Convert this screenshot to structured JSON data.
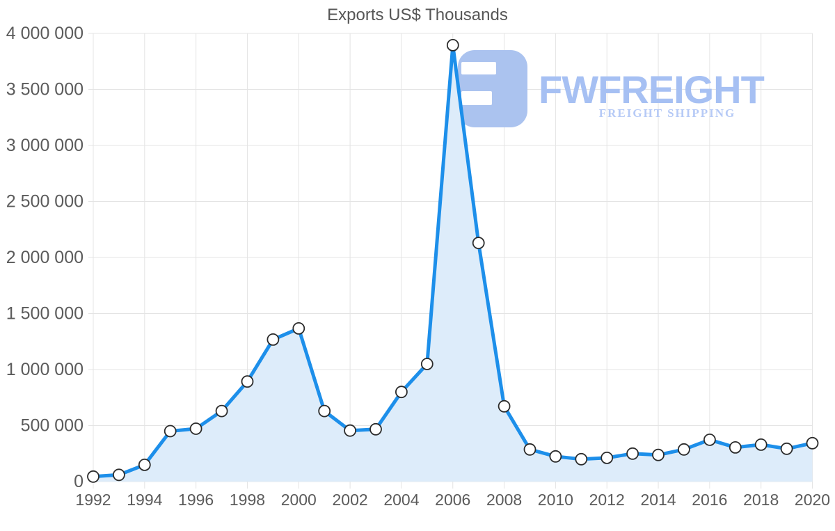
{
  "chart_data": {
    "type": "area",
    "title": "Exports US$ Thousands",
    "series": [
      {
        "name": "Exports US$ Thousands",
        "x": [
          1992,
          1993,
          1994,
          1995,
          1996,
          1997,
          1998,
          1999,
          2000,
          2001,
          2002,
          2003,
          2004,
          2005,
          2006,
          2007,
          2008,
          2009,
          2010,
          2011,
          2012,
          2013,
          2014,
          2015,
          2016,
          2017,
          2018,
          2019,
          2020
        ],
        "values": [
          45000,
          60000,
          150000,
          450000,
          472000,
          630000,
          893000,
          1268000,
          1367000,
          630000,
          455000,
          467000,
          800000,
          1050000,
          3895000,
          2130000,
          672000,
          287000,
          225000,
          200000,
          212000,
          250000,
          238000,
          287000,
          373000,
          305000,
          330000,
          293000,
          343000
        ]
      }
    ],
    "xlabel": "",
    "ylabel": "",
    "ylim": [
      0,
      4000000
    ],
    "y_tick_step": 500000,
    "y_tick_labels": [
      "0",
      "500 000",
      "1 000 000",
      "1 500 000",
      "2 000 000",
      "2 500 000",
      "3 000 000",
      "3 500 000",
      "4 000 000"
    ],
    "x_tick_labels": [
      "1992",
      "1994",
      "1996",
      "1998",
      "2000",
      "2002",
      "2004",
      "2006",
      "2008",
      "2010",
      "2012",
      "2014",
      "2016",
      "2018",
      "2020"
    ],
    "grid": "both",
    "legend": false,
    "marker": "circle"
  },
  "watermark": {
    "brand": "FWFREIGHT",
    "tagline": "FREIGHT SHIPPING"
  },
  "colors": {
    "line": "#1d8fea",
    "area_fill": "#ddecfa",
    "marker_fill": "#ffffff",
    "marker_stroke": "#2b2b2b",
    "gridline": "#e4e4e4",
    "axis_label": "#5b5b5b",
    "title": "#565656",
    "logo_primary": "#abc3ef",
    "logo_text": "#a6c0f3",
    "logo_tagline": "#b6caf6"
  }
}
